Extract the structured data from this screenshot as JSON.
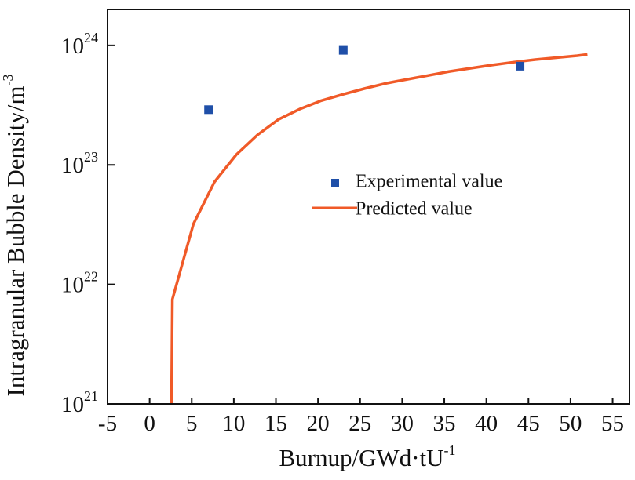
{
  "chart_data": {
    "type": "scatter",
    "title": "",
    "xlabel": "Burnup/GWd·tU",
    "xlabel_sup": "-1",
    "ylabel": "Intragranular Bubble Density/m",
    "ylabel_sup": "-3",
    "xlim": [
      -5,
      57
    ],
    "ylim": [
      1e+21,
      2e+24
    ],
    "yscale": "log",
    "grid": false,
    "legend_position": "center-right",
    "x_ticks": [
      -5,
      0,
      5,
      10,
      15,
      20,
      25,
      30,
      35,
      40,
      45,
      50,
      55
    ],
    "y_ticks": [
      {
        "value": 1e+21,
        "base": "10",
        "exp": "21"
      },
      {
        "value": 1e+22,
        "base": "10",
        "exp": "22"
      },
      {
        "value": 1e+23,
        "base": "10",
        "exp": "23"
      },
      {
        "value": 1e+24,
        "base": "10",
        "exp": "24"
      }
    ],
    "series": [
      {
        "name": "Experimental value",
        "type": "scatter",
        "color": "#1f4fa8",
        "marker": "square",
        "points": [
          {
            "x": 7,
            "y": 2.9e+23
          },
          {
            "x": 23,
            "y": 9.1e+23
          },
          {
            "x": 44,
            "y": 6.7e+23
          }
        ]
      },
      {
        "name": "Predicted value",
        "type": "line",
        "color": "#f05a28",
        "points": [
          {
            "x": 2.6,
            "y": 1e+21
          },
          {
            "x": 2.7,
            "y": 7.5e+21
          },
          {
            "x": 5.2,
            "y": 3.2e+22
          },
          {
            "x": 7.7,
            "y": 7.2e+22
          },
          {
            "x": 10.3,
            "y": 1.22e+23
          },
          {
            "x": 12.8,
            "y": 1.78e+23
          },
          {
            "x": 15.3,
            "y": 2.4e+23
          },
          {
            "x": 17.9,
            "y": 2.95e+23
          },
          {
            "x": 20.4,
            "y": 3.45e+23
          },
          {
            "x": 23.0,
            "y": 3.9e+23
          },
          {
            "x": 25.5,
            "y": 4.35e+23
          },
          {
            "x": 28.0,
            "y": 4.8e+23
          },
          {
            "x": 30.6,
            "y": 5.2e+23
          },
          {
            "x": 33.1,
            "y": 5.6e+23
          },
          {
            "x": 35.6,
            "y": 6.05e+23
          },
          {
            "x": 38.2,
            "y": 6.45e+23
          },
          {
            "x": 40.7,
            "y": 6.85e+23
          },
          {
            "x": 43.3,
            "y": 7.25e+23
          },
          {
            "x": 45.8,
            "y": 7.6e+23
          },
          {
            "x": 48.3,
            "y": 7.9e+23
          },
          {
            "x": 50.8,
            "y": 8.2e+23
          },
          {
            "x": 52.0,
            "y": 8.4e+23
          }
        ]
      }
    ]
  }
}
